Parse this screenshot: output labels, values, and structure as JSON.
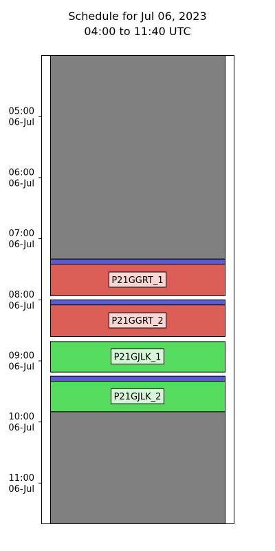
{
  "chart_data": {
    "type": "timeline",
    "title": "Schedule for Jul 06, 2023",
    "subtitle": "04:00 to 11:40 UTC",
    "y_axis": {
      "start": "04:00",
      "end": "11:40",
      "ticks": [
        {
          "time": "05:00",
          "date": "06-Jul"
        },
        {
          "time": "06:00",
          "date": "06-Jul"
        },
        {
          "time": "07:00",
          "date": "06-Jul"
        },
        {
          "time": "08:00",
          "date": "06-Jul"
        },
        {
          "time": "09:00",
          "date": "06-Jul"
        },
        {
          "time": "10:00",
          "date": "06-Jul"
        },
        {
          "time": "11:00",
          "date": "06-Jul"
        }
      ]
    },
    "blocks": [
      {
        "start": "04:00",
        "end": "07:20",
        "color": "#808080",
        "label": ""
      },
      {
        "start": "07:20",
        "end": "07:25",
        "color": "#5a5ad6",
        "label": ""
      },
      {
        "start": "07:25",
        "end": "07:56",
        "color": "#dc5f57",
        "label": "P21GGRT_1"
      },
      {
        "start": "08:00",
        "end": "08:05",
        "color": "#5a5ad6",
        "label": ""
      },
      {
        "start": "08:05",
        "end": "08:36",
        "color": "#dc5f57",
        "label": "P21GGRT_2"
      },
      {
        "start": "08:41",
        "end": "09:11",
        "color": "#55dc5f",
        "label": "P21GJLK_1"
      },
      {
        "start": "09:15",
        "end": "09:20",
        "color": "#5a5ad6",
        "label": ""
      },
      {
        "start": "09:20",
        "end": "09:50",
        "color": "#55dc5f",
        "label": "P21GJLK_2"
      },
      {
        "start": "09:50",
        "end": "11:40",
        "color": "#808080",
        "label": ""
      }
    ],
    "label_box_colors": {
      "#dc5f57": "#f8d7d5",
      "#55dc5f": "#d5f6d7"
    }
  }
}
